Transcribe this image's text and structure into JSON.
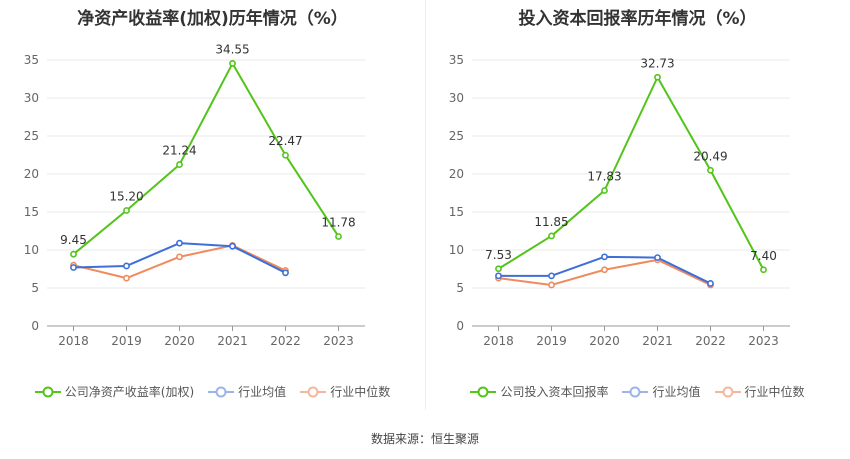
{
  "chart_data": [
    {
      "type": "line",
      "title": "净资产收益率(加权)历年情况（%）",
      "categories": [
        "2018",
        "2019",
        "2020",
        "2021",
        "2022",
        "2023"
      ],
      "y_ticks": [
        "0",
        "5",
        "10",
        "15",
        "20",
        "25",
        "30",
        "35"
      ],
      "ylim": [
        0,
        35
      ],
      "grid": true,
      "legend_position": "bottom-center",
      "series": [
        {
          "name": "公司净资产收益率(加权)",
          "color": "#52c41a",
          "values": [
            9.45,
            15.2,
            21.24,
            34.55,
            22.47,
            11.78
          ],
          "labels": [
            "9.45",
            "15.20",
            "21.24",
            "34.55",
            "22.47",
            "11.78"
          ]
        },
        {
          "name": "行业均值",
          "color": "#3e6fd8",
          "values": [
            7.7,
            7.9,
            10.9,
            10.5,
            7.0,
            null
          ]
        },
        {
          "name": "行业中位数",
          "color": "#f08a5d",
          "values": [
            8.0,
            6.3,
            9.1,
            10.6,
            7.3,
            null
          ]
        }
      ]
    },
    {
      "type": "line",
      "title": "投入资本回报率历年情况（%）",
      "categories": [
        "2018",
        "2019",
        "2020",
        "2021",
        "2022",
        "2023"
      ],
      "y_ticks": [
        "0",
        "5",
        "10",
        "15",
        "20",
        "25",
        "30",
        "35"
      ],
      "ylim": [
        0,
        35
      ],
      "grid": true,
      "legend_position": "bottom-center",
      "series": [
        {
          "name": "公司投入资本回报率",
          "color": "#52c41a",
          "values": [
            7.53,
            11.85,
            17.83,
            32.73,
            20.49,
            7.4
          ],
          "labels": [
            "7.53",
            "11.85",
            "17.83",
            "32.73",
            "20.49",
            "7.40"
          ]
        },
        {
          "name": "行业均值",
          "color": "#3e6fd8",
          "values": [
            6.6,
            6.6,
            9.1,
            9.0,
            5.6,
            null
          ]
        },
        {
          "name": "行业中位数",
          "color": "#f08a5d",
          "values": [
            6.3,
            5.4,
            7.4,
            8.7,
            5.4,
            null
          ]
        }
      ]
    }
  ],
  "footer": {
    "source": "数据来源：恒生聚源"
  }
}
